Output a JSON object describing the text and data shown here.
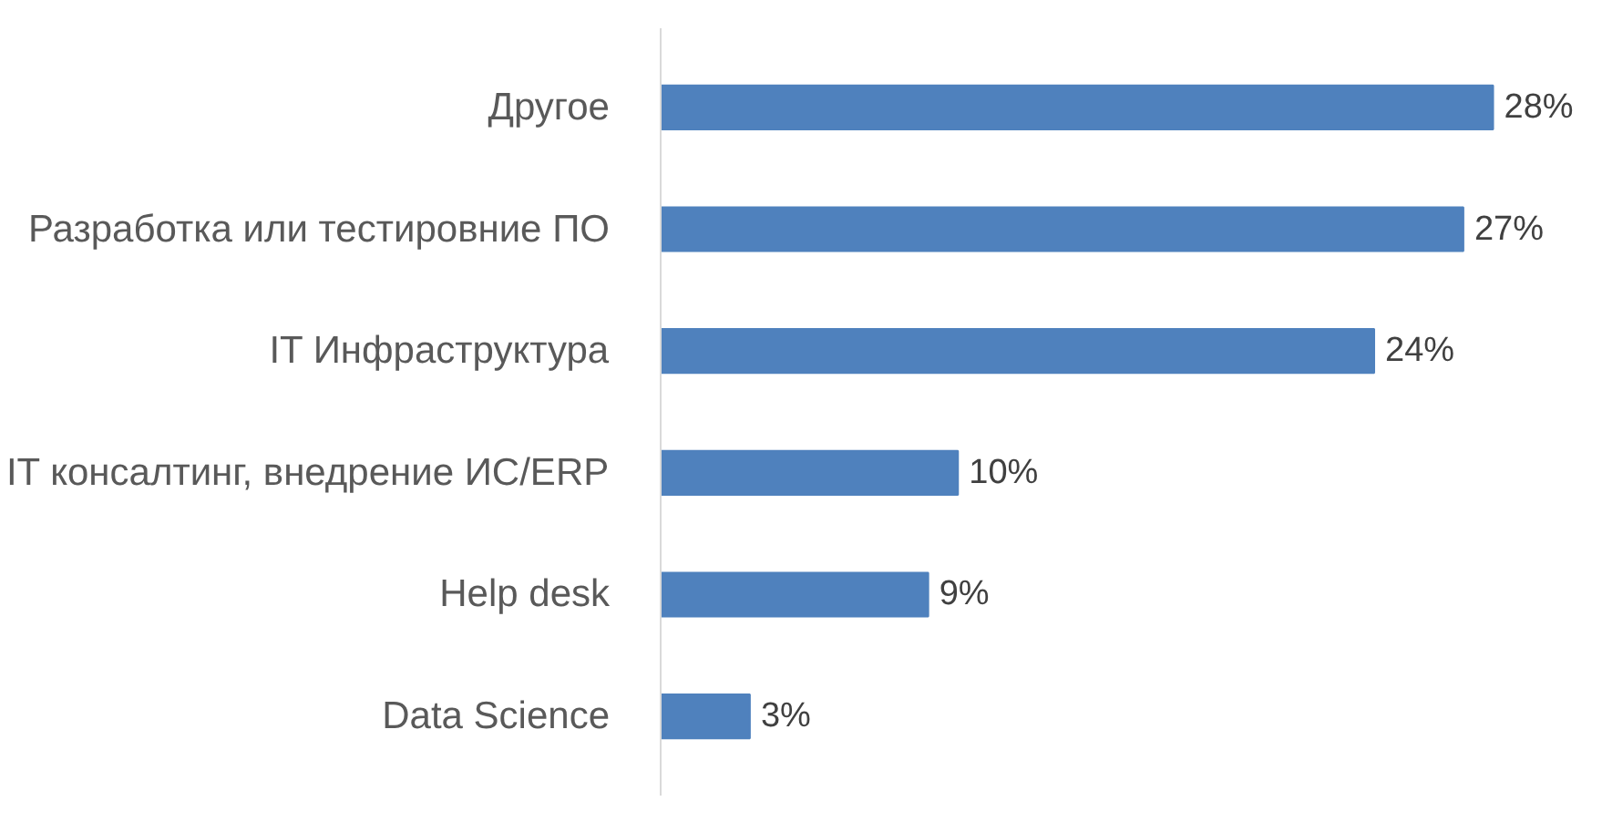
{
  "chart_data": {
    "type": "bar",
    "orientation": "horizontal",
    "categories": [
      "Другое",
      "Разработка или тестировние ПО",
      "IT Инфраструктура",
      "IT консалтинг, внедрение ИС/ERP",
      "Help desk",
      "Data Science"
    ],
    "values": [
      28,
      27,
      24,
      10,
      9,
      3
    ],
    "value_labels": [
      "28%",
      "27%",
      "24%",
      "10%",
      "9%",
      "3%"
    ],
    "color": "#4f81bd",
    "grid": false
  }
}
